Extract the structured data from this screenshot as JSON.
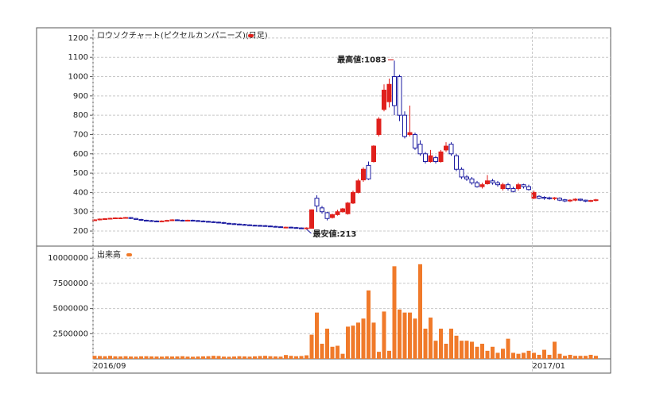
{
  "chart_data": [
    {
      "type": "candlestick",
      "title": "ロウソクチャート(ピクセルカンパニーズ)(日足)",
      "up_color": "#e0201c",
      "down_color": "#1a1aa0",
      "ylim": [
        122,
        1253
      ],
      "yticks": [
        200,
        300,
        400,
        500,
        600,
        700,
        800,
        900,
        1000,
        1100,
        1200
      ],
      "grid": true,
      "annotations": [
        {
          "text": "最高値:1083",
          "index": 58,
          "at": "high"
        },
        {
          "text": "最安値:213",
          "index": 41,
          "at": "low"
        }
      ],
      "open": [
        256,
        258,
        262,
        264,
        266,
        268,
        268,
        270,
        265,
        260,
        256,
        254,
        252,
        250,
        252,
        255,
        258,
        256,
        254,
        256,
        254,
        252,
        250,
        248,
        246,
        244,
        240,
        238,
        236,
        234,
        232,
        230,
        229,
        228,
        226,
        224,
        222,
        220,
        220,
        218,
        216,
        215,
        214,
        370,
        320,
        295,
        270,
        285,
        300,
        290,
        345,
        400,
        465,
        540,
        560,
        700,
        830,
        870,
        1000,
        1000,
        800,
        700,
        700,
        650,
        600,
        560,
        580,
        560,
        620,
        650,
        590,
        520,
        480,
        470,
        450,
        430,
        445,
        460,
        450,
        420,
        440,
        420,
        420,
        440,
        430,
        370,
        380,
        375,
        372,
        368,
        370,
        362,
        356,
        360,
        365,
        360,
        355,
        358
      ],
      "high": [
        261,
        265,
        267,
        269,
        271,
        271,
        273,
        273,
        268,
        263,
        259,
        257,
        255,
        255,
        258,
        261,
        261,
        259,
        259,
        259,
        257,
        255,
        253,
        251,
        249,
        247,
        243,
        241,
        239,
        237,
        235,
        233,
        232,
        231,
        229,
        227,
        225,
        223,
        223,
        221,
        219,
        219,
        312,
        385,
        330,
        300,
        290,
        310,
        320,
        350,
        410,
        470,
        530,
        560,
        645,
        790,
        960,
        990,
        1083,
        1010,
        820,
        850,
        710,
        670,
        610,
        620,
        590,
        620,
        660,
        660,
        600,
        530,
        490,
        480,
        460,
        450,
        490,
        470,
        460,
        450,
        450,
        430,
        450,
        445,
        440,
        410,
        385,
        380,
        378,
        376,
        375,
        366,
        365,
        370,
        368,
        362,
        362,
        366
      ],
      "low": [
        255,
        255,
        259,
        261,
        263,
        265,
        265,
        262,
        257,
        253,
        251,
        249,
        247,
        247,
        249,
        252,
        253,
        251,
        251,
        251,
        249,
        247,
        245,
        243,
        241,
        237,
        235,
        233,
        231,
        229,
        227,
        226,
        225,
        223,
        221,
        219,
        217,
        217,
        216,
        215,
        214,
        213,
        214,
        300,
        290,
        255,
        265,
        280,
        295,
        285,
        340,
        395,
        455,
        465,
        555,
        690,
        820,
        840,
        800,
        770,
        680,
        690,
        620,
        590,
        550,
        555,
        550,
        555,
        610,
        590,
        510,
        470,
        460,
        440,
        425,
        420,
        440,
        440,
        430,
        410,
        410,
        400,
        410,
        420,
        410,
        365,
        365,
        362,
        362,
        360,
        355,
        350,
        350,
        355,
        355,
        350,
        350,
        354
      ],
      "close": [
        258,
        262,
        264,
        266,
        268,
        268,
        270,
        265,
        260,
        256,
        254,
        252,
        250,
        252,
        255,
        258,
        256,
        254,
        256,
        254,
        252,
        250,
        248,
        246,
        244,
        240,
        238,
        236,
        234,
        232,
        230,
        229,
        228,
        226,
        224,
        222,
        220,
        220,
        218,
        216,
        215,
        216,
        310,
        330,
        300,
        265,
        285,
        300,
        315,
        345,
        400,
        460,
        520,
        470,
        640,
        780,
        930,
        960,
        850,
        800,
        690,
        710,
        630,
        600,
        560,
        590,
        560,
        610,
        640,
        600,
        520,
        480,
        470,
        450,
        430,
        440,
        460,
        450,
        440,
        440,
        420,
        405,
        440,
        430,
        415,
        400,
        370,
        370,
        368,
        372,
        360,
        356,
        360,
        365,
        360,
        355,
        358,
        362
      ]
    },
    {
      "type": "bar",
      "title": "出来高",
      "color": "#f07a2a",
      "ylim": [
        0,
        11200000
      ],
      "yticks": [
        2500000,
        5000000,
        7500000,
        10000000
      ],
      "grid": true,
      "categories": [
        "2016/09",
        null,
        null,
        null,
        null,
        null,
        null,
        null,
        null,
        null,
        null,
        null,
        null,
        null,
        null,
        null,
        null,
        null,
        null,
        null,
        null,
        null,
        null,
        null,
        null,
        null,
        null,
        null,
        null,
        null,
        null,
        null,
        null,
        null,
        null,
        null,
        null,
        null,
        null,
        null,
        null,
        null,
        null,
        null,
        null,
        null,
        null,
        null,
        null,
        null,
        null,
        null,
        null,
        null,
        null,
        null,
        null,
        null,
        null,
        null,
        null,
        null,
        null,
        null,
        null,
        null,
        null,
        null,
        null,
        null,
        null,
        null,
        null,
        null,
        null,
        null,
        null,
        null,
        null,
        null,
        null,
        null,
        null,
        null,
        null,
        "2017/01",
        null,
        null,
        null,
        null,
        null,
        null,
        null,
        null,
        null,
        null,
        null,
        null
      ],
      "values": [
        300000,
        280000,
        260000,
        300000,
        250000,
        240000,
        260000,
        230000,
        220000,
        250000,
        260000,
        240000,
        230000,
        220000,
        250000,
        230000,
        240000,
        260000,
        220000,
        210000,
        230000,
        250000,
        260000,
        300000,
        280000,
        220000,
        210000,
        230000,
        260000,
        240000,
        220000,
        250000,
        280000,
        300000,
        260000,
        240000,
        220000,
        380000,
        300000,
        260000,
        280000,
        350000,
        2400000,
        4600000,
        1500000,
        3000000,
        1200000,
        1300000,
        500000,
        3200000,
        3300000,
        3600000,
        4000000,
        6800000,
        3600000,
        700000,
        4700000,
        800000,
        9200000,
        4900000,
        4600000,
        4600000,
        4000000,
        9400000,
        3000000,
        4100000,
        1800000,
        3000000,
        1500000,
        3000000,
        2300000,
        1800000,
        1800000,
        1700000,
        1200000,
        1500000,
        800000,
        1200000,
        600000,
        1000000,
        2000000,
        600000,
        500000,
        600000,
        800000,
        600000,
        400000,
        900000,
        400000,
        1700000,
        500000,
        300000,
        400000,
        300000,
        300000,
        300000,
        400000,
        300000
      ]
    }
  ]
}
